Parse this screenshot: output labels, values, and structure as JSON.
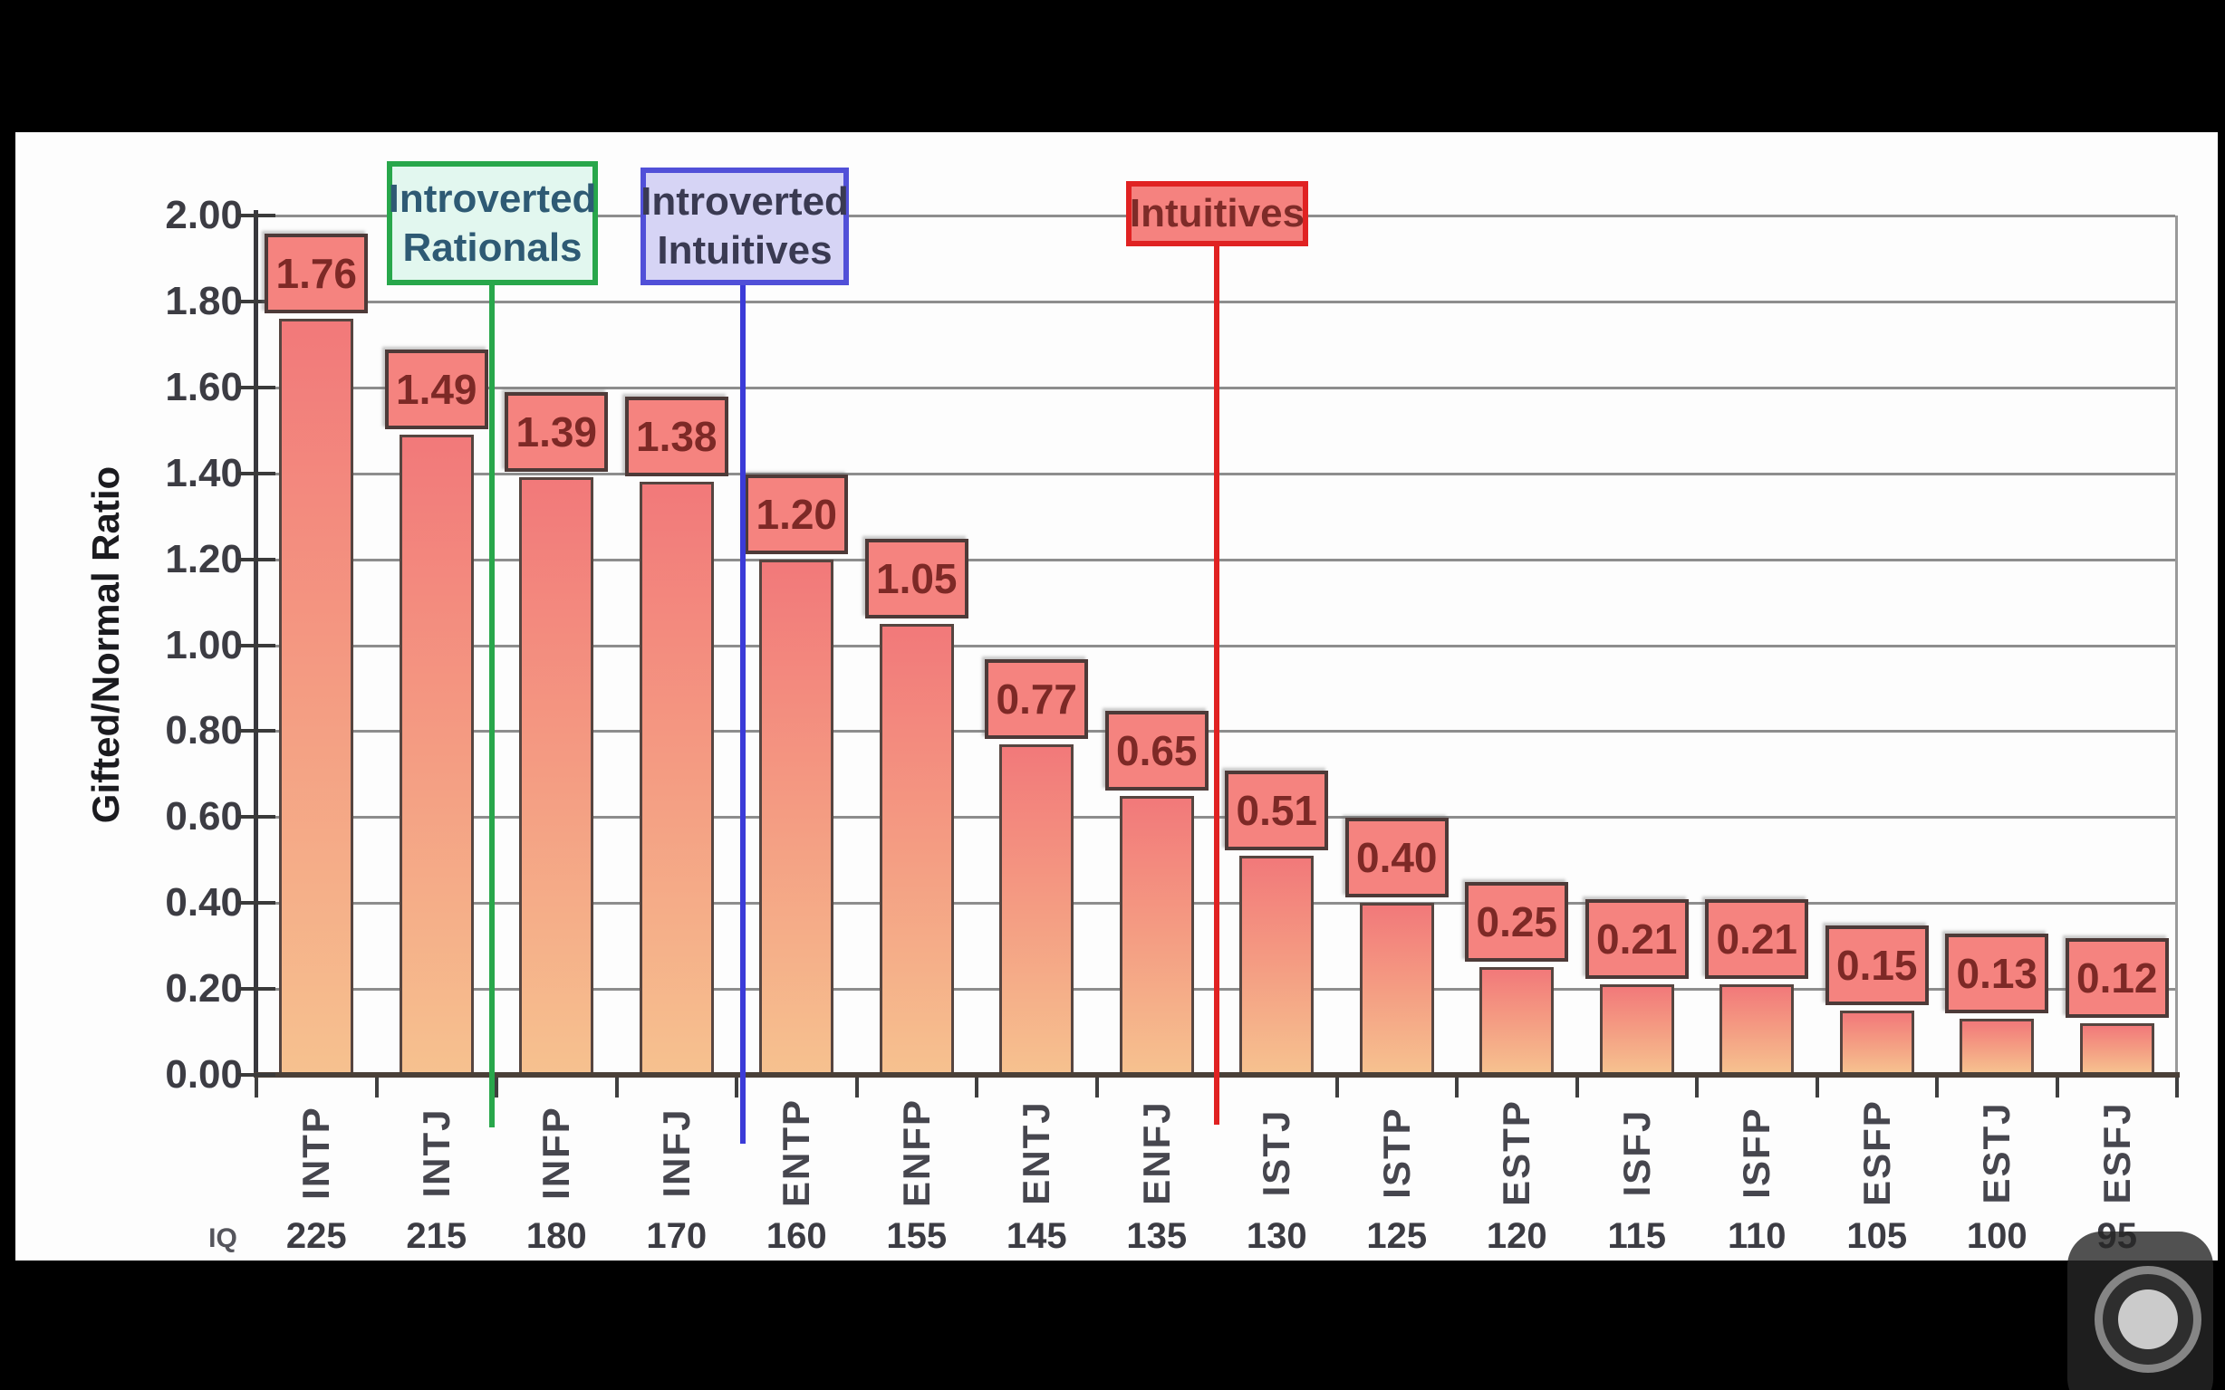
{
  "chart_data": {
    "type": "bar",
    "title": "",
    "ylabel": "Gifted/Normal Ratio",
    "iq_row_label": "IQ",
    "ylim": [
      0,
      2.0
    ],
    "ytick_step": 0.2,
    "grid": true,
    "yticks": [
      "2.00",
      "1.80",
      "1.60",
      "1.40",
      "1.20",
      "1.00",
      "0.80",
      "0.60",
      "0.40",
      "0.20",
      "0.00"
    ],
    "categories": [
      "INTP",
      "INTJ",
      "INFP",
      "INFJ",
      "ENTP",
      "ENFP",
      "ENTJ",
      "ENFJ",
      "ISTJ",
      "ISTP",
      "ESTP",
      "ISFJ",
      "ISFP",
      "ESFP",
      "ESTJ",
      "ESFJ"
    ],
    "values": [
      1.76,
      1.49,
      1.39,
      1.38,
      1.2,
      1.05,
      0.77,
      0.65,
      0.51,
      0.4,
      0.25,
      0.21,
      0.21,
      0.15,
      0.13,
      0.12
    ],
    "value_labels": [
      "1.76",
      "1.49",
      "1.39",
      "1.38",
      "1.20",
      "1.05",
      "0.77",
      "0.65",
      "0.51",
      "0.40",
      "0.25",
      "0.21",
      "0.21",
      "0.15",
      "0.13",
      "0.12"
    ],
    "iq_values": [
      "225",
      "215",
      "180",
      "170",
      "160",
      "155",
      "145",
      "135",
      "130",
      "125",
      "120",
      "115",
      "110",
      "105",
      "100",
      "95"
    ],
    "annotations": [
      {
        "label": "Introverted Rationals",
        "lines": [
          "Introverted",
          "Rationals"
        ],
        "fill": "#e2f7ef",
        "border": "#28a74b",
        "text_color": "#2e5a74",
        "line_color": "#28a74b"
      },
      {
        "label": "Introverted Intuitives",
        "lines": [
          "Introverted",
          "Intuitives"
        ],
        "fill": "#d6d4f5",
        "border": "#5150d8",
        "text_color": "#3a3a52",
        "line_color": "#3b3bd8"
      },
      {
        "label": "Intuitives",
        "lines": [
          "Intuitives"
        ],
        "fill": "#f5827f",
        "border": "#e02222",
        "text_color": "#7e2b28",
        "line_color": "#e02222"
      }
    ],
    "colors": {
      "bar_top": "#f2797a",
      "bar_bottom": "#f6c18f",
      "bar_border": "#564540",
      "value_box_fill": "#f5837f",
      "value_box_border": "#4d3a38",
      "value_text": "#7d2926",
      "gridline": "#8d8d8d",
      "axis": "#38383d"
    }
  },
  "overlay": {
    "camera_button": "screenshot-camera"
  }
}
